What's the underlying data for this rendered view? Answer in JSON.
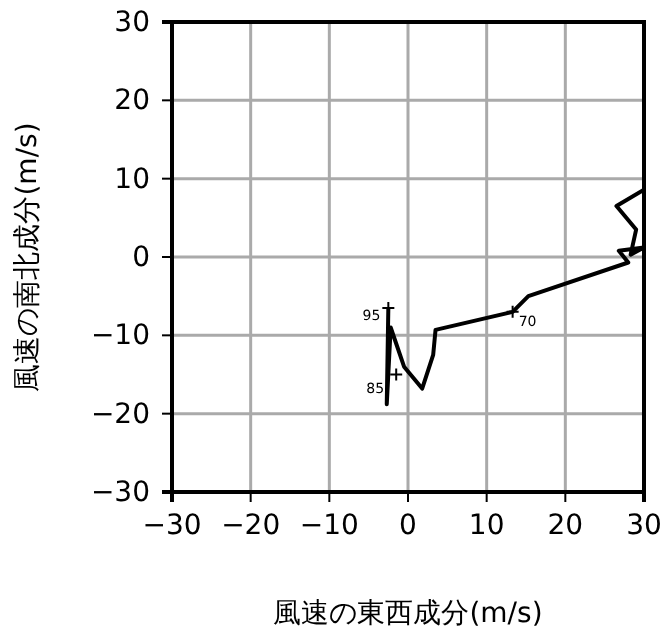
{
  "chart_data": {
    "type": "line",
    "xlabel": "風速の東西成分(m/s)",
    "ylabel": "風速の南北成分(m/s)",
    "xlim": [
      -30,
      30
    ],
    "ylim": [
      -30,
      30
    ],
    "xticks": [
      -30,
      -20,
      -10,
      0,
      10,
      20,
      30
    ],
    "yticks": [
      -30,
      -20,
      -10,
      0,
      10,
      20,
      30
    ],
    "grid": true,
    "marker": "none",
    "line_style": "solid",
    "series": [
      {
        "color": "#000000",
        "x": [
          -2.5,
          -2.7,
          -2.2,
          -0.5,
          1.8,
          3.2,
          3.5,
          13.3,
          15.3,
          28,
          26.8,
          30,
          28.3,
          29,
          26.5,
          30
        ],
        "values": [
          -6.5,
          -18.8,
          -9,
          -14,
          -16.8,
          -12.5,
          -9.3,
          -7,
          -5,
          -0.7,
          0.8,
          1.2,
          0.3,
          3.5,
          6.5,
          8.6
        ]
      }
    ],
    "annotations": [
      {
        "text": "95",
        "x": -2.5,
        "y": -6.5
      },
      {
        "text": "85",
        "x": -1.5,
        "y": -15
      },
      {
        "text": "70",
        "x": 13.3,
        "y": -7
      }
    ]
  }
}
